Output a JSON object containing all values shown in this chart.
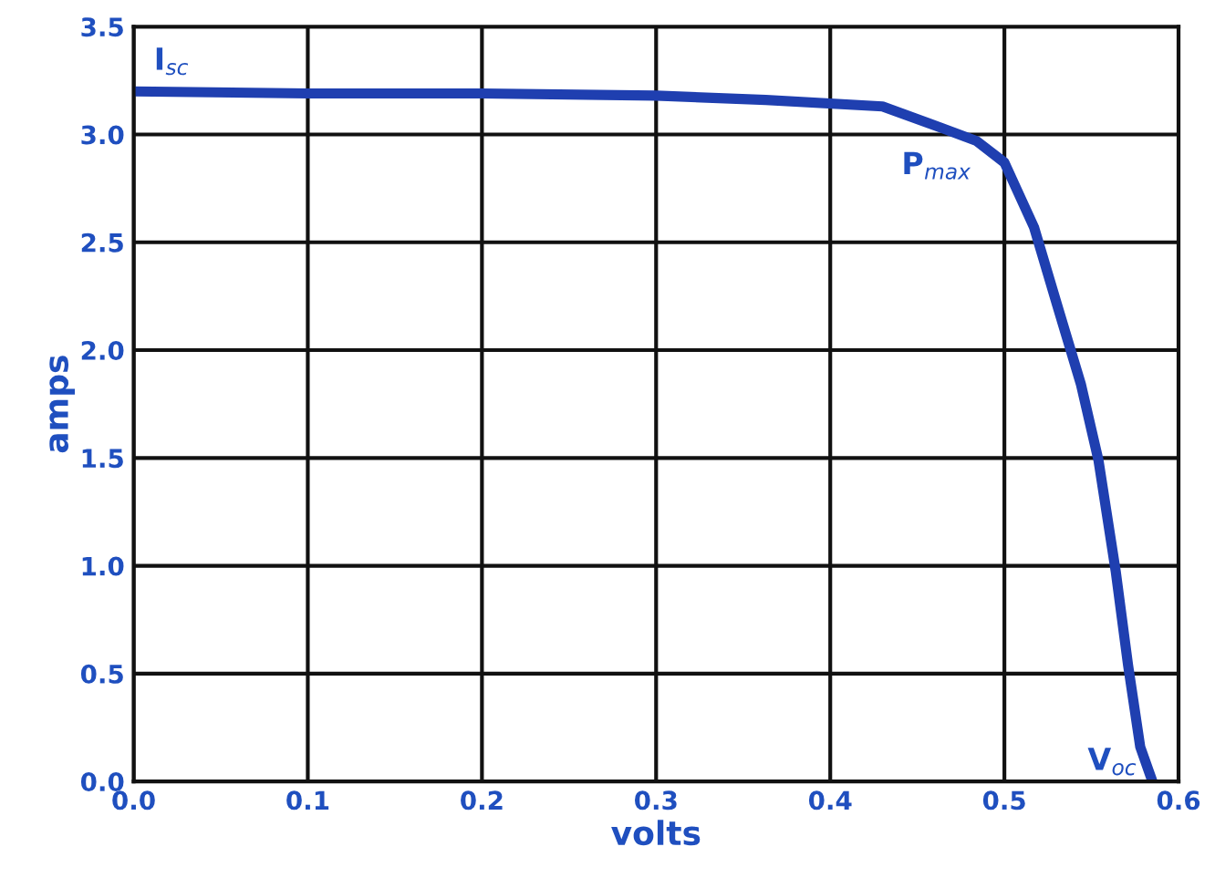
{
  "chart_data": {
    "type": "line",
    "xlabel": "volts",
    "ylabel": "amps",
    "x": [
      0.0,
      0.1,
      0.2,
      0.3,
      0.363,
      0.43,
      0.464,
      0.484,
      0.5,
      0.517,
      0.531,
      0.544,
      0.554,
      0.564,
      0.571,
      0.578,
      0.585
    ],
    "series": [
      {
        "color": "#1f3fb0",
        "values": [
          3.2,
          3.19,
          3.19,
          3.18,
          3.16,
          3.13,
          3.03,
          2.97,
          2.87,
          2.57,
          2.19,
          1.84,
          1.49,
          0.97,
          0.54,
          0.16,
          0.0
        ]
      }
    ],
    "xlim": [
      0.0,
      0.6
    ],
    "xticks": [
      {
        "value": 0.0,
        "label": "0.0"
      },
      0.1,
      0.2,
      0.3,
      0.4,
      0.5,
      0.6
    ],
    "ylim": [
      0.0,
      3.5
    ],
    "yticks": [
      {
        "value": 0.0,
        "label": "0.0"
      },
      0.5,
      {
        "value": 1.0,
        "label": "1.0"
      },
      1.5,
      {
        "value": 2.0,
        "label": "2.0"
      },
      2.5,
      {
        "value": 3.0,
        "label": "3.0"
      },
      3.5
    ],
    "grid": true,
    "marker": "none",
    "line_style": "solid",
    "annotations": [
      {
        "text": "I$_{sc}$",
        "x": 0.0,
        "y": 3.2
      },
      {
        "text": "P$_{max}$",
        "x": 0.484,
        "y": 2.97
      },
      {
        "text": "V$_{oc}$",
        "x": 0.585,
        "y": 0.0
      }
    ]
  }
}
